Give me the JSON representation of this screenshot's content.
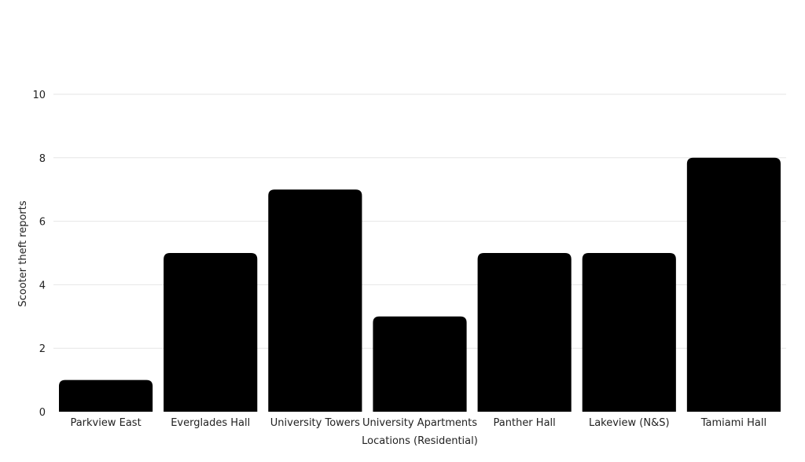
{
  "chart_data": {
    "type": "bar",
    "categories": [
      "Parkview East",
      "Everglades Hall",
      "University Towers",
      "University Apartments",
      "Panther Hall",
      "Lakeview (N&S)",
      "Tamiami Hall"
    ],
    "values": [
      1,
      5,
      7,
      3,
      5,
      5,
      8
    ],
    "title": "",
    "xlabel": "Locations (Residential)",
    "ylabel": "Scooter theft reports",
    "ylim": [
      0,
      10
    ],
    "yticks": [
      "0",
      "2",
      "4",
      "6",
      "8",
      "10"
    ],
    "grid": true,
    "bar_color": "#000000",
    "grid_color": "#e6e6e6"
  }
}
